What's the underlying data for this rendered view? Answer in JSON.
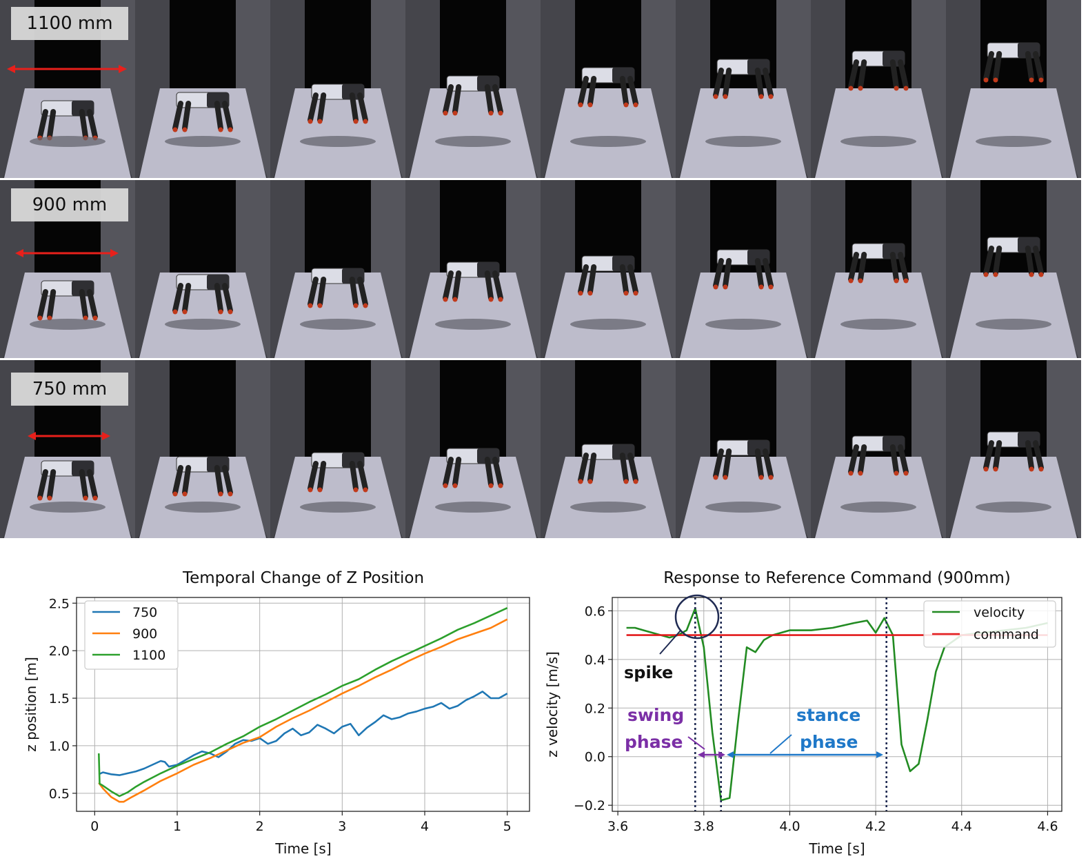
{
  "strips": [
    {
      "label": "1100 mm"
    },
    {
      "label": "900 mm"
    },
    {
      "label": "750 mm"
    }
  ],
  "colors": {
    "c750": "#1f77b4",
    "c900": "#ff7f0e",
    "c1100": "#2ca02c",
    "velocity": "#228b22",
    "command": "#e31a1c",
    "swing": "#7b2fa6",
    "stance": "#1f78c8",
    "marker": "#1f2a52",
    "arrow": "#e8201b"
  },
  "chart_data": [
    {
      "type": "line",
      "title": "Temporal Change of Z Position",
      "xlabel": "Time [s]",
      "ylabel": "z position [m]",
      "xlim": [
        -0.22,
        5.27
      ],
      "ylim": [
        0.31,
        2.56
      ],
      "xticks": [
        0,
        1,
        2,
        3,
        4,
        5
      ],
      "yticks": [
        0.5,
        1.0,
        1.5,
        2.0,
        2.5
      ],
      "xtick_labels": [
        "0",
        "1",
        "2",
        "3",
        "4",
        "5"
      ],
      "ytick_labels": [
        "0.5",
        "1.0",
        "1.5",
        "2.0",
        "2.5"
      ],
      "grid": true,
      "legend_position": "upper-left",
      "series": [
        {
          "name": "750",
          "color": "#1f77b4",
          "x": [
            0.05,
            0.1,
            0.2,
            0.3,
            0.4,
            0.5,
            0.6,
            0.7,
            0.8,
            0.85,
            0.9,
            1.0,
            1.1,
            1.2,
            1.3,
            1.4,
            1.5,
            1.6,
            1.7,
            1.8,
            1.9,
            2.0,
            2.1,
            2.2,
            2.3,
            2.4,
            2.5,
            2.6,
            2.7,
            2.8,
            2.9,
            3.0,
            3.1,
            3.2,
            3.3,
            3.4,
            3.5,
            3.6,
            3.7,
            3.8,
            3.9,
            4.0,
            4.1,
            4.2,
            4.3,
            4.4,
            4.5,
            4.6,
            4.7,
            4.8,
            4.9,
            5.0
          ],
          "y": [
            0.7,
            0.72,
            0.7,
            0.69,
            0.71,
            0.73,
            0.76,
            0.8,
            0.84,
            0.83,
            0.78,
            0.8,
            0.85,
            0.9,
            0.94,
            0.92,
            0.88,
            0.94,
            1.02,
            1.06,
            1.05,
            1.08,
            1.02,
            1.05,
            1.13,
            1.18,
            1.11,
            1.14,
            1.22,
            1.18,
            1.13,
            1.2,
            1.23,
            1.11,
            1.19,
            1.25,
            1.32,
            1.28,
            1.3,
            1.34,
            1.36,
            1.39,
            1.41,
            1.45,
            1.39,
            1.42,
            1.48,
            1.52,
            1.57,
            1.5,
            1.5,
            1.55
          ]
        },
        {
          "name": "900",
          "color": "#ff7f0e",
          "x": [
            0.05,
            0.1,
            0.2,
            0.3,
            0.35,
            0.45,
            0.6,
            0.8,
            1.0,
            1.2,
            1.4,
            1.6,
            1.8,
            2.0,
            2.2,
            2.4,
            2.6,
            2.8,
            3.0,
            3.2,
            3.4,
            3.6,
            3.8,
            4.0,
            4.2,
            4.4,
            4.6,
            4.8,
            5.0
          ],
          "y": [
            0.61,
            0.55,
            0.46,
            0.41,
            0.41,
            0.46,
            0.53,
            0.63,
            0.71,
            0.8,
            0.87,
            0.95,
            1.03,
            1.09,
            1.2,
            1.29,
            1.37,
            1.46,
            1.55,
            1.63,
            1.72,
            1.8,
            1.89,
            1.97,
            2.04,
            2.12,
            2.18,
            2.24,
            2.33
          ]
        },
        {
          "name": "1100",
          "color": "#2ca02c",
          "x": [
            0.05,
            0.06,
            0.1,
            0.2,
            0.3,
            0.4,
            0.5,
            0.6,
            0.8,
            1.0,
            1.2,
            1.4,
            1.6,
            1.8,
            2.0,
            2.2,
            2.4,
            2.6,
            2.8,
            3.0,
            3.2,
            3.4,
            3.6,
            3.8,
            4.0,
            4.2,
            4.4,
            4.6,
            4.8,
            5.0
          ],
          "y": [
            0.92,
            0.6,
            0.58,
            0.52,
            0.47,
            0.51,
            0.57,
            0.62,
            0.71,
            0.79,
            0.86,
            0.93,
            1.02,
            1.1,
            1.2,
            1.28,
            1.37,
            1.46,
            1.54,
            1.63,
            1.7,
            1.8,
            1.89,
            1.97,
            2.05,
            2.13,
            2.22,
            2.29,
            2.37,
            2.45
          ]
        }
      ]
    },
    {
      "type": "line",
      "title": "Response to Reference Command (900mm)",
      "xlabel": "Time [s]",
      "ylabel": "z velocity [m/s]",
      "xlim": [
        3.587,
        4.633
      ],
      "ylim": [
        -0.225,
        0.655
      ],
      "xticks": [
        3.6,
        3.8,
        4.0,
        4.2,
        4.4,
        4.6
      ],
      "yticks": [
        -0.2,
        0.0,
        0.2,
        0.4,
        0.6
      ],
      "xtick_labels": [
        "3.6",
        "3.8",
        "4.0",
        "4.2",
        "4.4",
        "4.6"
      ],
      "ytick_labels": [
        "−0.2",
        "0.0",
        "0.2",
        "0.4",
        "0.6"
      ],
      "grid": true,
      "legend_position": "upper-right",
      "series": [
        {
          "name": "velocity",
          "color": "#228b22",
          "x": [
            3.62,
            3.64,
            3.66,
            3.68,
            3.7,
            3.72,
            3.74,
            3.76,
            3.78,
            3.8,
            3.82,
            3.84,
            3.86,
            3.88,
            3.9,
            3.92,
            3.94,
            3.96,
            4.0,
            4.05,
            4.1,
            4.15,
            4.18,
            4.2,
            4.22,
            4.24,
            4.26,
            4.28,
            4.3,
            4.32,
            4.34,
            4.36,
            4.4,
            4.45,
            4.5,
            4.55,
            4.6
          ],
          "y": [
            0.53,
            0.53,
            0.52,
            0.51,
            0.5,
            0.49,
            0.5,
            0.52,
            0.61,
            0.45,
            0.1,
            -0.18,
            -0.17,
            0.15,
            0.45,
            0.43,
            0.48,
            0.5,
            0.52,
            0.52,
            0.53,
            0.55,
            0.56,
            0.51,
            0.57,
            0.5,
            0.05,
            -0.06,
            -0.03,
            0.15,
            0.35,
            0.45,
            0.5,
            0.51,
            0.52,
            0.53,
            0.55
          ]
        },
        {
          "name": "command",
          "color": "#e31a1c",
          "x": [
            3.62,
            4.6
          ],
          "y": [
            0.5,
            0.5
          ]
        }
      ],
      "vlines": [
        3.78,
        3.84,
        4.225
      ],
      "annotations": [
        {
          "text": "spike",
          "x": 3.78,
          "y": 0.61
        },
        {
          "text_lines": [
            "swing",
            "phase"
          ],
          "x_start": 3.78,
          "x_end": 3.84,
          "y": 0.0
        },
        {
          "text_lines": [
            "stance",
            "phase"
          ],
          "x_start": 3.84,
          "x_end": 4.225,
          "y": 0.0
        }
      ]
    }
  ]
}
